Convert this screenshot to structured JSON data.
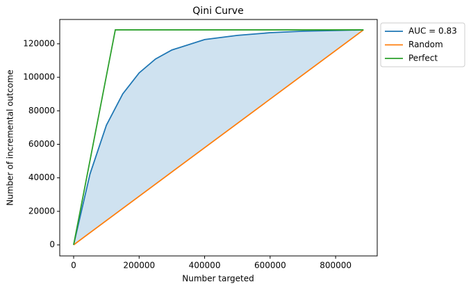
{
  "chart_data": {
    "type": "line",
    "title": "Qini Curve",
    "x_label": "Number targeted",
    "y_label": "Number of incremental outcome",
    "xlim": [
      -42400,
      927000
    ],
    "ylim": [
      -6600,
      134500
    ],
    "xticks": [
      0,
      200000,
      400000,
      600000,
      800000
    ],
    "yticks": [
      0,
      20000,
      40000,
      60000,
      80000,
      100000,
      120000
    ],
    "legend": "outside-upper-right",
    "fill_between": [
      0,
      1
    ],
    "fill_color": "#cfe2f0",
    "series": [
      {
        "name": "AUC = 0.83",
        "color": "#1f77b4",
        "x": [
          0,
          50000,
          100000,
          150000,
          200000,
          250000,
          300000,
          400000,
          500000,
          600000,
          700000,
          800000,
          885000
        ],
        "values": [
          0,
          42300,
          71400,
          90100,
          102600,
          110900,
          116300,
          122500,
          125000,
          126600,
          127500,
          127900,
          128300
        ]
      },
      {
        "name": "Random",
        "color": "#ff7f0e",
        "x": [
          0,
          885000
        ],
        "values": [
          0,
          128300
        ]
      },
      {
        "name": "Perfect",
        "color": "#2ca02c",
        "x": [
          0,
          127300,
          885000
        ],
        "values": [
          0,
          128300,
          128300
        ]
      }
    ]
  }
}
